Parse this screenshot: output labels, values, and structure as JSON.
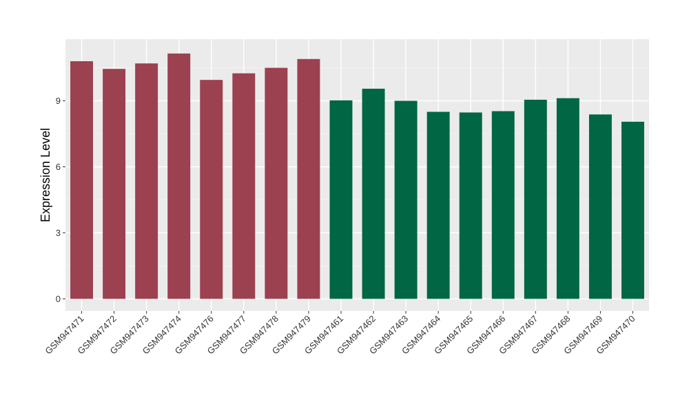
{
  "chart_data": {
    "type": "bar",
    "title": "",
    "xlabel": "",
    "ylabel": "Expression Level",
    "ylim": [
      -0.55,
      11.8
    ],
    "yticks": [
      0,
      3,
      6,
      9
    ],
    "grid": true,
    "legend": "none",
    "panel_color": "#ebebeb",
    "categories": [
      "GSM947471",
      "GSM947472",
      "GSM947473",
      "GSM947474",
      "GSM947476",
      "GSM947477",
      "GSM947478",
      "GSM947479",
      "GSM947461",
      "GSM947462",
      "GSM947463",
      "GSM947464",
      "GSM947465",
      "GSM947466",
      "GSM947467",
      "GSM947468",
      "GSM947469",
      "GSM947470"
    ],
    "values": [
      10.8,
      10.45,
      10.7,
      11.15,
      9.95,
      10.25,
      10.5,
      10.9,
      9.02,
      9.55,
      9.0,
      8.5,
      8.47,
      8.53,
      9.05,
      9.12,
      8.38,
      8.05
    ],
    "colors": [
      "#9b414f",
      "#9b414f",
      "#9b414f",
      "#9b414f",
      "#9b414f",
      "#9b414f",
      "#9b414f",
      "#9b414f",
      "#016644",
      "#016644",
      "#016644",
      "#016644",
      "#016644",
      "#016644",
      "#016644",
      "#016644",
      "#016644",
      "#016644"
    ]
  }
}
